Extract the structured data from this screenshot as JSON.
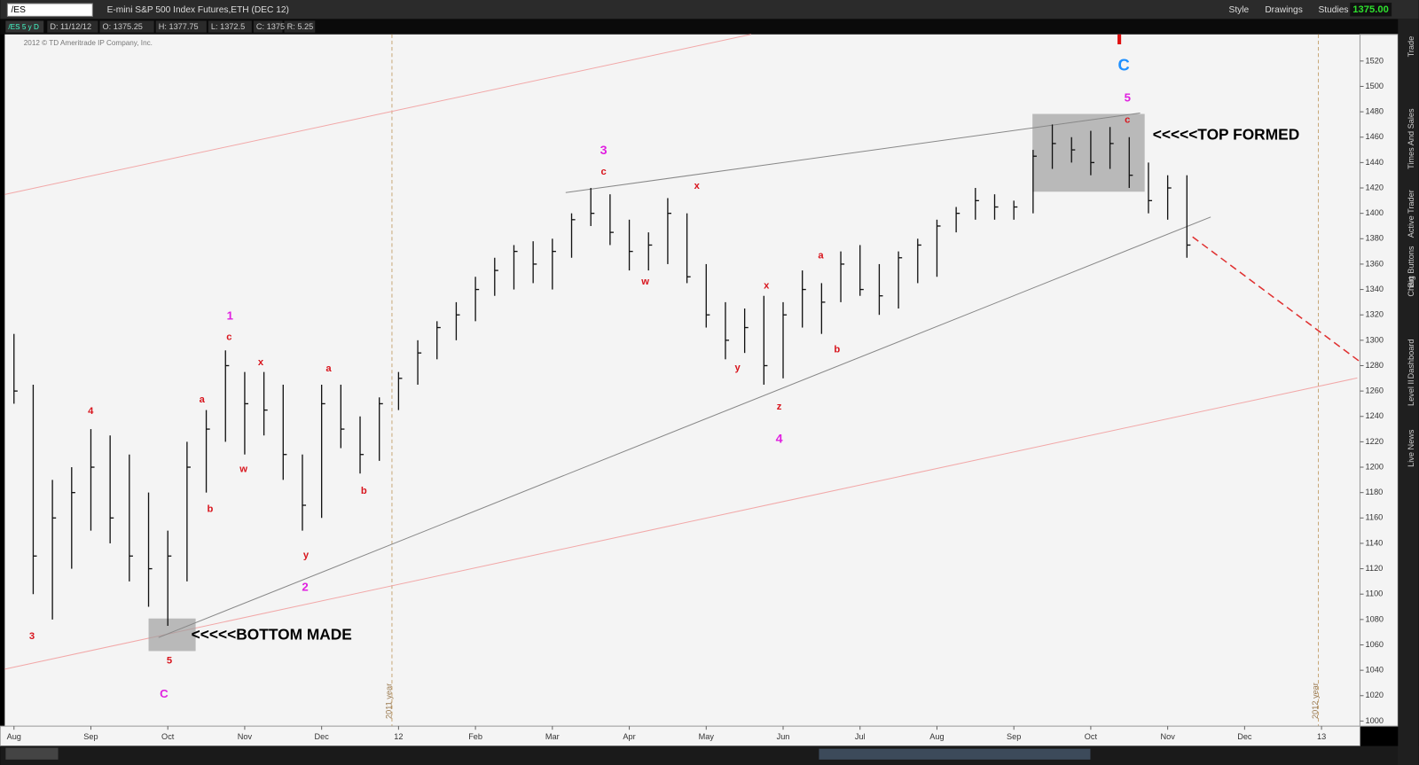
{
  "toolbar": {
    "symbol": "/ES",
    "description": "E-mini S&P 500 Index Futures,ETH (DEC 12)",
    "buttons": [
      "Style",
      "Drawings",
      "Studies"
    ],
    "last_price": "1375.00"
  },
  "info_bar": {
    "chart_label": "/ES 5 y D",
    "fields": [
      "D: 11/12/12",
      "O: 1375.25",
      "H: 1377.75",
      "L: 1372.5",
      "C: 1375",
      "R: 5.25"
    ]
  },
  "side_tabs": [
    "Trade",
    "Times And Sales",
    "Active Trader",
    "Big Buttons",
    "Chart",
    "Dashboard",
    "Level II",
    "Live News"
  ],
  "chart_data": {
    "type": "ohlc",
    "copyright": "2012 © TD Ameritrade IP Company, Inc.",
    "color": "#111111",
    "year_lines": [
      "2011 year",
      "2012 year"
    ],
    "x": [
      0,
      0.25,
      0.5,
      0.75,
      1,
      1.25,
      1.5,
      1.75,
      2,
      2.25,
      2.5,
      2.75,
      3,
      3.25,
      3.5,
      3.75,
      4,
      4.25,
      4.5,
      4.75,
      5,
      5.25,
      5.5,
      5.75,
      6,
      6.25,
      6.5,
      6.75,
      7,
      7.25,
      7.5,
      7.75,
      8,
      8.25,
      8.5,
      8.75,
      9,
      9.25,
      9.5,
      9.75,
      10,
      10.25,
      10.5,
      10.75,
      11,
      11.25,
      11.5,
      11.75,
      12,
      12.25,
      12.5,
      12.75,
      13,
      13.25,
      13.5,
      13.75,
      14,
      14.25,
      14.5,
      14.75,
      15,
      15.25
    ],
    "high": [
      1305,
      1265,
      1190,
      1200,
      1230,
      1225,
      1210,
      1180,
      1150,
      1220,
      1245,
      1292,
      1275,
      1275,
      1265,
      1210,
      1265,
      1265,
      1240,
      1255,
      1275,
      1300,
      1315,
      1330,
      1350,
      1365,
      1375,
      1378,
      1380,
      1400,
      1420,
      1415,
      1395,
      1385,
      1412,
      1400,
      1360,
      1330,
      1325,
      1335,
      1330,
      1355,
      1345,
      1370,
      1375,
      1360,
      1370,
      1380,
      1395,
      1405,
      1420,
      1415,
      1410,
      1450,
      1470,
      1460,
      1465,
      1468,
      1460,
      1440,
      1430,
      1430
    ],
    "low": [
      1250,
      1100,
      1080,
      1120,
      1150,
      1140,
      1110,
      1090,
      1075,
      1110,
      1180,
      1220,
      1210,
      1225,
      1190,
      1150,
      1160,
      1215,
      1195,
      1205,
      1245,
      1265,
      1285,
      1300,
      1315,
      1335,
      1340,
      1345,
      1340,
      1365,
      1390,
      1375,
      1355,
      1355,
      1360,
      1345,
      1310,
      1285,
      1290,
      1265,
      1270,
      1310,
      1305,
      1330,
      1335,
      1320,
      1325,
      1345,
      1350,
      1385,
      1395,
      1395,
      1395,
      1400,
      1435,
      1440,
      1430,
      1435,
      1420,
      1400,
      1395,
      1365
    ],
    "close": [
      1260,
      1130,
      1160,
      1180,
      1200,
      1160,
      1130,
      1120,
      1130,
      1200,
      1230,
      1280,
      1250,
      1245,
      1210,
      1170,
      1250,
      1230,
      1210,
      1250,
      1270,
      1290,
      1310,
      1320,
      1340,
      1355,
      1370,
      1360,
      1370,
      1395,
      1400,
      1385,
      1370,
      1375,
      1400,
      1350,
      1320,
      1300,
      1310,
      1280,
      1320,
      1340,
      1330,
      1360,
      1340,
      1335,
      1365,
      1375,
      1390,
      1400,
      1410,
      1405,
      1405,
      1445,
      1455,
      1450,
      1440,
      1455,
      1430,
      1410,
      1420,
      1375
    ],
    "xlim": [
      -0.12,
      17.5
    ],
    "xticks": [
      {
        "value": 0,
        "label": "Aug"
      },
      {
        "value": 1,
        "label": "Sep"
      },
      {
        "value": 2,
        "label": "Oct"
      },
      {
        "value": 3,
        "label": "Nov"
      },
      {
        "value": 4,
        "label": "Dec"
      },
      {
        "value": 5,
        "label": "12"
      },
      {
        "value": 6,
        "label": "Feb"
      },
      {
        "value": 7,
        "label": "Mar"
      },
      {
        "value": 8,
        "label": "Apr"
      },
      {
        "value": 9,
        "label": "May"
      },
      {
        "value": 10,
        "label": "Jun"
      },
      {
        "value": 11,
        "label": "Jul"
      },
      {
        "value": 12,
        "label": "Aug"
      },
      {
        "value": 13,
        "label": "Sep"
      },
      {
        "value": 14,
        "label": "Oct"
      },
      {
        "value": 15,
        "label": "Nov"
      },
      {
        "value": 16,
        "label": "Dec"
      },
      {
        "value": 17,
        "label": "13"
      }
    ],
    "ylim": [
      996,
      1541
    ],
    "yticks": [
      1000,
      1020,
      1040,
      1060,
      1080,
      1100,
      1120,
      1140,
      1160,
      1180,
      1200,
      1220,
      1240,
      1260,
      1280,
      1300,
      1320,
      1340,
      1360,
      1380,
      1400,
      1420,
      1440,
      1460,
      1480,
      1500,
      1520
    ],
    "annotations": [
      {
        "text": "3",
        "color": "#d8141c"
      },
      {
        "text": "4",
        "color": "#d8141c"
      },
      {
        "text": "a",
        "color": "#d8141c"
      },
      {
        "text": "b",
        "color": "#d8141c"
      },
      {
        "text": "c",
        "color": "#d8141c"
      },
      {
        "text": "1",
        "color": "#e020e0"
      },
      {
        "text": "x",
        "color": "#d8141c"
      },
      {
        "text": "w",
        "color": "#d8141c"
      },
      {
        "text": "y",
        "color": "#d8141c"
      },
      {
        "text": "2",
        "color": "#e020e0"
      },
      {
        "text": "a",
        "color": "#d8141c"
      },
      {
        "text": "b",
        "color": "#d8141c"
      },
      {
        "text": "5",
        "color": "#d8141c"
      },
      {
        "text": "C",
        "color": "#e020e0"
      },
      {
        "text": "3",
        "color": "#e020e0"
      },
      {
        "text": "c",
        "color": "#d8141c"
      },
      {
        "text": "x",
        "color": "#d8141c"
      },
      {
        "text": "w",
        "color": "#d8141c"
      },
      {
        "text": "y",
        "color": "#d8141c"
      },
      {
        "text": "x",
        "color": "#d8141c"
      },
      {
        "text": "z",
        "color": "#d8141c"
      },
      {
        "text": "4",
        "color": "#e020e0"
      },
      {
        "text": "a",
        "color": "#d8141c"
      },
      {
        "text": "b",
        "color": "#d8141c"
      },
      {
        "text": "5",
        "color": "#e020e0"
      },
      {
        "text": "c",
        "color": "#d8141c"
      },
      {
        "text": "C",
        "color": "#1e90ff"
      },
      {
        "text": "<<<<<TOP FORMED",
        "color": "#000000"
      },
      {
        "text": "<<<<<BOTTOM MADE",
        "color": "#000000"
      }
    ]
  }
}
